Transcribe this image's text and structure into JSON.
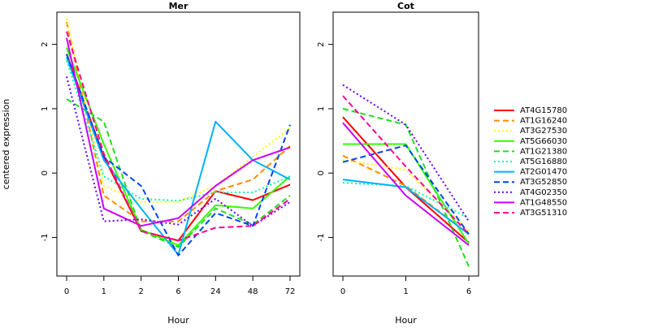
{
  "chart_data": {
    "type": "line",
    "ylabel": "centered expression",
    "grid": false,
    "legend_position": "right",
    "series_styles": [
      {
        "name": "AT4G15780",
        "color": "#ff0000",
        "dash": "solid"
      },
      {
        "name": "AT1G16240",
        "color": "#ff8c00",
        "dash": "dashed"
      },
      {
        "name": "AT3G27530",
        "color": "#ffff00",
        "dash": "dotted"
      },
      {
        "name": "AT5G66030",
        "color": "#33ff00",
        "dash": "solid"
      },
      {
        "name": "AT1G21380",
        "color": "#22dd22",
        "dash": "dashed"
      },
      {
        "name": "AT5G16880",
        "color": "#00ffaa",
        "dash": "dotted"
      },
      {
        "name": "AT2G01470",
        "color": "#00b0ff",
        "dash": "solid"
      },
      {
        "name": "AT3G52850",
        "color": "#0044ee",
        "dash": "dashed"
      },
      {
        "name": "AT4G02350",
        "color": "#6600ff",
        "dash": "dotted"
      },
      {
        "name": "AT1G48550",
        "color": "#cc00ff",
        "dash": "solid"
      },
      {
        "name": "AT3G51310",
        "color": "#ff0099",
        "dash": "dashed"
      }
    ],
    "panels": [
      {
        "title": "Mer",
        "xlabel": "Hour",
        "categories": [
          "0",
          "1",
          "2",
          "6",
          "24",
          "48",
          "72"
        ],
        "ylim": [
          -1.6,
          2.5
        ],
        "yticks": [
          -1,
          0,
          1,
          2
        ],
        "series": [
          {
            "name": "AT4G15780",
            "values": [
              1.85,
              0.25,
              -0.9,
              -1.05,
              -0.28,
              -0.42,
              -0.18
            ]
          },
          {
            "name": "AT1G16240",
            "values": [
              2.35,
              -0.35,
              -0.75,
              -0.75,
              -0.28,
              -0.1,
              0.42
            ]
          },
          {
            "name": "AT3G27530",
            "values": [
              2.4,
              -0.2,
              -0.45,
              -0.45,
              -0.2,
              0.25,
              0.7
            ]
          },
          {
            "name": "AT5G66030",
            "values": [
              1.95,
              0.45,
              -0.88,
              -1.12,
              -0.5,
              -0.55,
              -0.05
            ]
          },
          {
            "name": "AT1G21380",
            "values": [
              1.15,
              0.8,
              -0.9,
              -1.15,
              -0.55,
              -0.8,
              -0.35
            ]
          },
          {
            "name": "AT5G16880",
            "values": [
              1.75,
              -0.05,
              -0.4,
              -0.43,
              -0.3,
              -0.3,
              -0.05
            ]
          },
          {
            "name": "AT2G01470",
            "values": [
              1.8,
              0.2,
              -0.55,
              -1.27,
              0.8,
              0.2,
              -0.1
            ]
          },
          {
            "name": "AT3G52850",
            "values": [
              1.85,
              0.25,
              -0.2,
              -1.28,
              -0.62,
              -0.82,
              0.75
            ]
          },
          {
            "name": "AT4G02350",
            "values": [
              1.5,
              -0.75,
              -0.72,
              -0.8,
              -0.4,
              -0.82,
              -0.45
            ]
          },
          {
            "name": "AT1G48550",
            "values": [
              2.1,
              -0.55,
              -0.82,
              -0.7,
              -0.2,
              0.2,
              0.4
            ]
          },
          {
            "name": "AT3G51310",
            "values": [
              2.2,
              0.3,
              -0.9,
              -1.05,
              -0.85,
              -0.82,
              -0.4
            ]
          }
        ]
      },
      {
        "title": "Cot",
        "xlabel": "Hour",
        "categories": [
          "0",
          "1",
          "6"
        ],
        "ylim": [
          -1.6,
          2.5
        ],
        "yticks": [
          -1,
          0,
          1,
          2
        ],
        "series": [
          {
            "name": "AT4G15780",
            "values": [
              0.87,
              -0.22,
              -1.08
            ]
          },
          {
            "name": "AT1G16240",
            "values": [
              0.27,
              -0.2,
              -0.95
            ]
          },
          {
            "name": "AT3G27530",
            "values": [
              0.2,
              0.05,
              -0.9
            ]
          },
          {
            "name": "AT5G66030",
            "values": [
              0.45,
              0.45,
              -1.1
            ]
          },
          {
            "name": "AT1G21380",
            "values": [
              1.0,
              0.75,
              -1.45
            ]
          },
          {
            "name": "AT5G16880",
            "values": [
              -0.15,
              -0.2,
              -0.7
            ]
          },
          {
            "name": "AT2G01470",
            "values": [
              -0.1,
              -0.22,
              -0.95
            ]
          },
          {
            "name": "AT3G52850",
            "values": [
              0.17,
              0.43,
              -0.95
            ]
          },
          {
            "name": "AT4G02350",
            "values": [
              1.37,
              0.75,
              -0.75
            ]
          },
          {
            "name": "AT1G48550",
            "values": [
              0.78,
              -0.35,
              -1.12
            ]
          },
          {
            "name": "AT3G51310",
            "values": [
              1.2,
              0.1,
              -0.95
            ]
          }
        ]
      }
    ]
  }
}
